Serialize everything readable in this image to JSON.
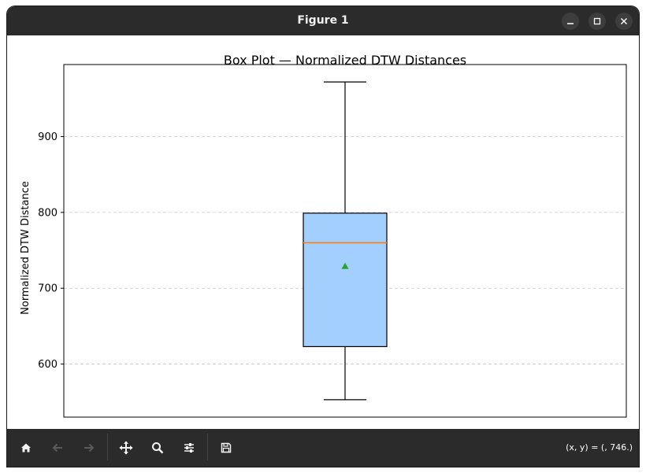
{
  "window": {
    "title": "Figure 1"
  },
  "chart_data": {
    "type": "box",
    "title": "Box Plot — Normalized DTW Distances",
    "xlabel": "",
    "ylabel": "Normalized DTW Distance",
    "ylim": [
      530,
      995
    ],
    "yticks": [
      600,
      700,
      800,
      900
    ],
    "grid": {
      "y": true,
      "style": "dashed"
    },
    "box": {
      "whisker_low": 553,
      "q1": 623,
      "median": 760,
      "q3": 799,
      "whisker_high": 972,
      "mean": 729
    },
    "colors": {
      "box_fill": "#a2cffe",
      "median": "#ff7f0e",
      "mean": "#2ca02c",
      "grid": "#c8c8c8"
    }
  },
  "toolbar": {
    "buttons": [
      {
        "name": "home-icon",
        "enabled": true
      },
      {
        "name": "back-arrow-icon",
        "enabled": false
      },
      {
        "name": "forward-arrow-icon",
        "enabled": false
      },
      {
        "name": "pan-icon",
        "enabled": true
      },
      {
        "name": "zoom-icon",
        "enabled": true
      },
      {
        "name": "configure-subplots-icon",
        "enabled": true
      },
      {
        "name": "save-icon",
        "enabled": true
      }
    ],
    "coords": "(x, y) = (, 746.)"
  }
}
